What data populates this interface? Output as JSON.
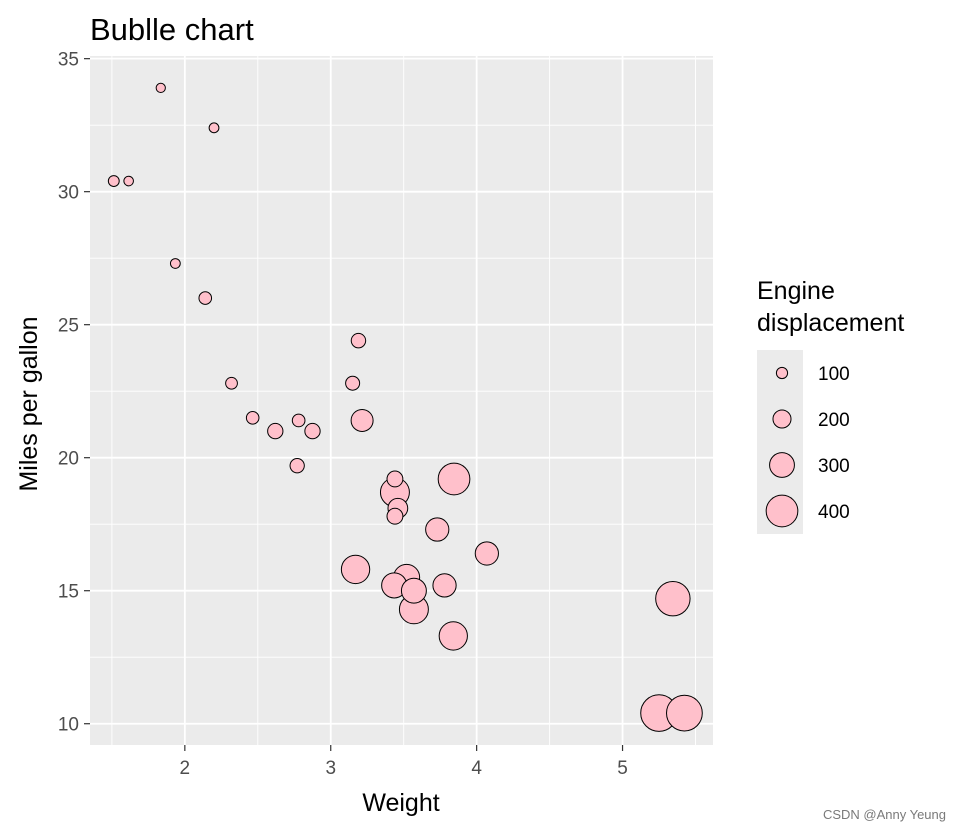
{
  "chart_data": {
    "type": "scatter",
    "title": "Bublle chart",
    "xlabel": "Weight",
    "ylabel": "Miles per gallon",
    "xlim": [
      1.35,
      5.62
    ],
    "ylim": [
      9.2,
      35.1
    ],
    "x_ticks": [
      2,
      3,
      4,
      5
    ],
    "y_ticks": [
      10,
      15,
      20,
      25,
      30,
      35
    ],
    "grid": true,
    "legend": {
      "title_lines": [
        "Engine",
        "displacement"
      ],
      "placement": "right",
      "entries": [
        {
          "label": "100",
          "size": 100
        },
        {
          "label": "200",
          "size": 200
        },
        {
          "label": "300",
          "size": 300
        },
        {
          "label": "400",
          "size": 400
        }
      ]
    },
    "colors": {
      "fill": "#ffc0cb",
      "stroke": "#000000",
      "panel": "#ebebeb",
      "grid": "#ffffff"
    },
    "points": [
      {
        "x": 2.62,
        "y": 21.0,
        "size": 160
      },
      {
        "x": 2.875,
        "y": 21.0,
        "size": 160
      },
      {
        "x": 2.32,
        "y": 22.8,
        "size": 108
      },
      {
        "x": 3.215,
        "y": 21.4,
        "size": 258
      },
      {
        "x": 3.44,
        "y": 18.7,
        "size": 360
      },
      {
        "x": 3.46,
        "y": 18.1,
        "size": 225
      },
      {
        "x": 3.57,
        "y": 14.3,
        "size": 360
      },
      {
        "x": 3.19,
        "y": 24.4,
        "size": 147
      },
      {
        "x": 3.15,
        "y": 22.8,
        "size": 141
      },
      {
        "x": 3.44,
        "y": 19.2,
        "size": 168
      },
      {
        "x": 3.44,
        "y": 17.8,
        "size": 168
      },
      {
        "x": 4.07,
        "y": 16.4,
        "size": 276
      },
      {
        "x": 3.73,
        "y": 17.3,
        "size": 276
      },
      {
        "x": 3.78,
        "y": 15.2,
        "size": 276
      },
      {
        "x": 5.25,
        "y": 10.4,
        "size": 472
      },
      {
        "x": 5.424,
        "y": 10.4,
        "size": 460
      },
      {
        "x": 5.345,
        "y": 14.7,
        "size": 440
      },
      {
        "x": 2.2,
        "y": 32.4,
        "size": 79
      },
      {
        "x": 1.615,
        "y": 30.4,
        "size": 76
      },
      {
        "x": 1.835,
        "y": 33.9,
        "size": 71
      },
      {
        "x": 2.465,
        "y": 21.5,
        "size": 120
      },
      {
        "x": 3.52,
        "y": 15.5,
        "size": 318
      },
      {
        "x": 3.435,
        "y": 15.2,
        "size": 304
      },
      {
        "x": 3.84,
        "y": 13.3,
        "size": 350
      },
      {
        "x": 3.845,
        "y": 19.2,
        "size": 400
      },
      {
        "x": 1.935,
        "y": 27.3,
        "size": 79
      },
      {
        "x": 2.14,
        "y": 26.0,
        "size": 120
      },
      {
        "x": 1.513,
        "y": 30.4,
        "size": 95
      },
      {
        "x": 3.17,
        "y": 15.8,
        "size": 351
      },
      {
        "x": 2.77,
        "y": 19.7,
        "size": 145
      },
      {
        "x": 3.57,
        "y": 15.0,
        "size": 301
      },
      {
        "x": 2.78,
        "y": 21.4,
        "size": 121
      }
    ]
  },
  "watermark": "CSDN @Anny Yeung"
}
